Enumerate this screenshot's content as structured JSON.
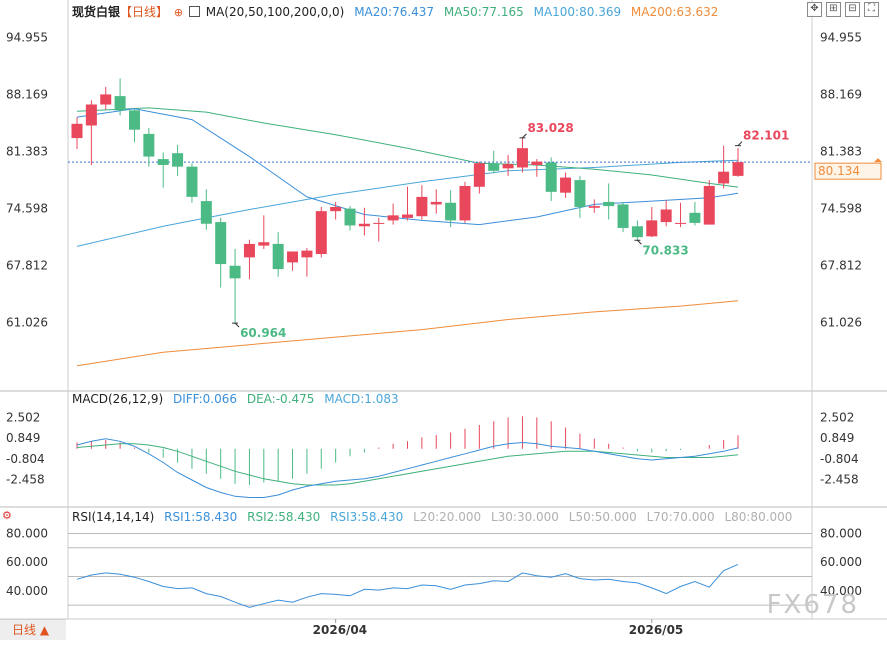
{
  "header": {
    "title": "现货白银",
    "period_tag": "【日线】",
    "ma_label": "MA(20,50,100,200,0,0)",
    "ma_values": [
      {
        "text": "MA20:76.437",
        "color": "#3b8fd9"
      },
      {
        "text": "MA50:77.165",
        "color": "#3fb07c"
      },
      {
        "text": "MA100:80.369",
        "color": "#4aa6d8"
      },
      {
        "text": "MA200:63.632",
        "color": "#f08c3a"
      }
    ]
  },
  "macd_legend": {
    "label": "MACD(26,12,9)",
    "values": [
      {
        "text": "DIFF:0.066",
        "color": "#3b8fd9"
      },
      {
        "text": "DEA:-0.475",
        "color": "#3fb07c"
      },
      {
        "text": "MACD:1.083",
        "color": "#4aa6d8"
      }
    ]
  },
  "rsi_legend": {
    "label": "RSI(14,14,14)",
    "values": [
      {
        "text": "RSI1:58.430",
        "color": "#3b8fd9"
      },
      {
        "text": "RSI2:58.430",
        "color": "#3fb07c"
      },
      {
        "text": "RSI3:58.430",
        "color": "#4aa6d8"
      },
      {
        "text": "L20:20.000",
        "color": "#b0b0b0"
      },
      {
        "text": "L30:30.000",
        "color": "#b0b0b0"
      },
      {
        "text": "L50:50.000",
        "color": "#b0b0b0"
      },
      {
        "text": "L70:70.000",
        "color": "#b0b0b0"
      },
      {
        "text": "L80:80.000",
        "color": "#b0b0b0"
      }
    ]
  },
  "period_tab": "日线 ▲",
  "watermark": "FX678",
  "colors": {
    "up": "#e8475c",
    "down": "#4cba85",
    "ma20": "#3b8fd9",
    "ma50": "#3fb07c",
    "ma100": "#4aa6d8",
    "ma200": "#f08c3a",
    "grid": "#dddddd",
    "axis_text": "#333333",
    "current_price_tag": "#f08c3a"
  },
  "chart_data": [
    {
      "type": "candlestick",
      "title": "现货白银【日线】",
      "y_ticks": [
        "94.955",
        "88.169",
        "81.383",
        "74.598",
        "67.812",
        "61.026"
      ],
      "ylim": [
        53.6,
        97.3
      ],
      "x_ticks": [
        "2026/04",
        "2026/05"
      ],
      "current_price": 80.134,
      "current_price_label": "80.134",
      "annotations": [
        {
          "label": "83.028",
          "value": 83.028,
          "index": 31,
          "color": "#e8475c"
        },
        {
          "label": "82.101",
          "value": 82.101,
          "index": 46,
          "color": "#e8475c"
        },
        {
          "label": "60.964",
          "value": 60.964,
          "index": 11,
          "color": "#4cba85"
        },
        {
          "label": "70.833",
          "value": 70.833,
          "index": 39,
          "color": "#4cba85"
        }
      ],
      "candles": [
        {
          "o": 83.0,
          "h": 85.5,
          "l": 81.7,
          "c": 84.7
        },
        {
          "o": 84.5,
          "h": 87.5,
          "l": 79.8,
          "c": 87.0
        },
        {
          "o": 87.0,
          "h": 89.1,
          "l": 86.4,
          "c": 88.2
        },
        {
          "o": 88.0,
          "h": 90.1,
          "l": 85.7,
          "c": 86.3
        },
        {
          "o": 86.3,
          "h": 86.4,
          "l": 82.5,
          "c": 84.0
        },
        {
          "o": 83.5,
          "h": 84.2,
          "l": 79.6,
          "c": 80.8
        },
        {
          "o": 80.5,
          "h": 81.3,
          "l": 77.1,
          "c": 79.8
        },
        {
          "o": 81.2,
          "h": 82.2,
          "l": 78.5,
          "c": 79.6
        },
        {
          "o": 79.6,
          "h": 80.0,
          "l": 75.3,
          "c": 76.0
        },
        {
          "o": 75.5,
          "h": 76.9,
          "l": 72.1,
          "c": 72.8
        },
        {
          "o": 73.0,
          "h": 73.5,
          "l": 65.2,
          "c": 68.0
        },
        {
          "o": 67.8,
          "h": 69.8,
          "l": 60.964,
          "c": 66.3
        },
        {
          "o": 68.8,
          "h": 70.9,
          "l": 66.2,
          "c": 70.4
        },
        {
          "o": 70.2,
          "h": 73.8,
          "l": 69.8,
          "c": 70.6
        },
        {
          "o": 70.4,
          "h": 71.8,
          "l": 66.5,
          "c": 67.4
        },
        {
          "o": 68.2,
          "h": 69.5,
          "l": 67.2,
          "c": 69.5
        },
        {
          "o": 68.8,
          "h": 69.9,
          "l": 66.5,
          "c": 69.6
        },
        {
          "o": 69.2,
          "h": 74.8,
          "l": 68.8,
          "c": 74.3
        },
        {
          "o": 74.3,
          "h": 75.4,
          "l": 73.3,
          "c": 74.8
        },
        {
          "o": 74.6,
          "h": 74.9,
          "l": 72.0,
          "c": 72.6
        },
        {
          "o": 72.5,
          "h": 74.7,
          "l": 71.4,
          "c": 72.8
        },
        {
          "o": 72.8,
          "h": 73.5,
          "l": 70.7,
          "c": 72.9
        },
        {
          "o": 73.2,
          "h": 75.2,
          "l": 72.7,
          "c": 73.8
        },
        {
          "o": 73.5,
          "h": 77.2,
          "l": 73.2,
          "c": 73.9
        },
        {
          "o": 73.7,
          "h": 77.4,
          "l": 73.3,
          "c": 76.0
        },
        {
          "o": 75.1,
          "h": 76.9,
          "l": 74.0,
          "c": 75.4
        },
        {
          "o": 75.3,
          "h": 76.8,
          "l": 72.4,
          "c": 73.2
        },
        {
          "o": 73.2,
          "h": 77.8,
          "l": 72.9,
          "c": 77.3
        },
        {
          "o": 77.2,
          "h": 80.2,
          "l": 76.4,
          "c": 80.0
        },
        {
          "o": 80.0,
          "h": 81.5,
          "l": 78.8,
          "c": 79.1
        },
        {
          "o": 79.4,
          "h": 81.0,
          "l": 78.5,
          "c": 79.9
        },
        {
          "o": 79.5,
          "h": 83.028,
          "l": 78.9,
          "c": 81.8
        },
        {
          "o": 79.8,
          "h": 80.5,
          "l": 78.4,
          "c": 80.2
        },
        {
          "o": 80.1,
          "h": 80.7,
          "l": 75.5,
          "c": 76.6
        },
        {
          "o": 76.5,
          "h": 78.9,
          "l": 75.9,
          "c": 78.3
        },
        {
          "o": 78.0,
          "h": 78.5,
          "l": 73.5,
          "c": 74.8
        },
        {
          "o": 74.7,
          "h": 75.7,
          "l": 74.1,
          "c": 74.9
        },
        {
          "o": 75.4,
          "h": 77.6,
          "l": 73.3,
          "c": 74.9
        },
        {
          "o": 75.1,
          "h": 75.4,
          "l": 71.8,
          "c": 72.3
        },
        {
          "o": 72.5,
          "h": 73.2,
          "l": 70.833,
          "c": 71.2
        },
        {
          "o": 71.3,
          "h": 74.8,
          "l": 71.2,
          "c": 73.2
        },
        {
          "o": 73.0,
          "h": 75.6,
          "l": 72.5,
          "c": 74.5
        },
        {
          "o": 72.8,
          "h": 75.3,
          "l": 72.4,
          "c": 72.9
        },
        {
          "o": 74.1,
          "h": 75.4,
          "l": 72.6,
          "c": 72.9
        },
        {
          "o": 72.7,
          "h": 78.0,
          "l": 72.7,
          "c": 77.3
        },
        {
          "o": 77.6,
          "h": 82.101,
          "l": 77.0,
          "c": 79.0
        },
        {
          "o": 78.5,
          "h": 81.8,
          "l": 78.4,
          "c": 80.134
        }
      ],
      "ma20": [
        [
          0,
          85.5
        ],
        [
          4,
          86.5
        ],
        [
          8,
          85.2
        ],
        [
          12,
          80.8
        ],
        [
          16,
          76.0
        ],
        [
          20,
          73.9
        ],
        [
          24,
          73.2
        ],
        [
          28,
          72.7
        ],
        [
          32,
          73.6
        ],
        [
          36,
          75.1
        ],
        [
          40,
          75.5
        ],
        [
          44,
          75.9
        ],
        [
          46,
          76.437
        ]
      ],
      "ma50": [
        [
          0,
          86.2
        ],
        [
          5,
          86.6
        ],
        [
          9,
          86.1
        ],
        [
          13,
          84.8
        ],
        [
          18,
          83.4
        ],
        [
          23,
          81.8
        ],
        [
          28,
          80.0
        ],
        [
          32,
          79.8
        ],
        [
          36,
          79.3
        ],
        [
          40,
          78.6
        ],
        [
          44,
          77.6
        ],
        [
          46,
          77.165
        ]
      ],
      "ma100": [
        [
          0,
          70.1
        ],
        [
          6,
          72.5
        ],
        [
          12,
          74.5
        ],
        [
          18,
          76.3
        ],
        [
          24,
          77.8
        ],
        [
          30,
          79.1
        ],
        [
          36,
          79.5
        ],
        [
          42,
          80.1
        ],
        [
          46,
          80.369
        ]
      ],
      "ma200": [
        [
          0,
          55.9
        ],
        [
          6,
          57.5
        ],
        [
          12,
          58.4
        ],
        [
          18,
          59.3
        ],
        [
          24,
          60.2
        ],
        [
          30,
          61.4
        ],
        [
          36,
          62.3
        ],
        [
          42,
          63.0
        ],
        [
          46,
          63.632
        ]
      ]
    },
    {
      "type": "bar+line",
      "title": "MACD(26,12,9)",
      "y_ticks": [
        "2.502",
        "0.849",
        "-0.804",
        "-2.458"
      ],
      "ylim": [
        -4.1,
        3.5
      ],
      "macd": [
        0.5,
        0.6,
        0.7,
        0.5,
        0.1,
        -0.3,
        -0.7,
        -1.1,
        -1.6,
        -2.0,
        -2.4,
        -2.8,
        -2.9,
        -2.7,
        -2.6,
        -2.4,
        -2.0,
        -1.6,
        -1.1,
        -0.6,
        -0.3,
        0.1,
        0.4,
        0.6,
        0.9,
        1.1,
        1.3,
        1.6,
        1.9,
        2.2,
        2.5,
        2.6,
        2.5,
        2.2,
        1.7,
        1.2,
        0.8,
        0.4,
        0.1,
        -0.2,
        -0.3,
        -0.2,
        -0.1,
        0.0,
        0.3,
        0.7,
        1.083
      ],
      "diff": [
        0.3,
        0.6,
        0.8,
        0.6,
        0.2,
        -0.4,
        -1.1,
        -1.9,
        -2.5,
        -3.1,
        -3.5,
        -3.8,
        -3.9,
        -3.9,
        -3.7,
        -3.3,
        -3.0,
        -2.8,
        -2.6,
        -2.5,
        -2.4,
        -2.2,
        -1.9,
        -1.6,
        -1.3,
        -1.0,
        -0.7,
        -0.4,
        -0.1,
        0.2,
        0.4,
        0.5,
        0.4,
        0.2,
        0.1,
        0.0,
        -0.2,
        -0.4,
        -0.6,
        -0.8,
        -0.9,
        -0.8,
        -0.7,
        -0.6,
        -0.4,
        -0.2,
        0.066
      ],
      "dea": [
        0.1,
        0.2,
        0.3,
        0.4,
        0.4,
        0.3,
        0.1,
        -0.2,
        -0.6,
        -1.0,
        -1.4,
        -1.8,
        -2.1,
        -2.4,
        -2.6,
        -2.8,
        -2.9,
        -2.9,
        -2.9,
        -2.8,
        -2.6,
        -2.4,
        -2.2,
        -2.0,
        -1.8,
        -1.6,
        -1.4,
        -1.2,
        -1.0,
        -0.8,
        -0.6,
        -0.5,
        -0.4,
        -0.3,
        -0.2,
        -0.2,
        -0.2,
        -0.3,
        -0.4,
        -0.5,
        -0.6,
        -0.7,
        -0.7,
        -0.7,
        -0.7,
        -0.6,
        -0.475
      ]
    },
    {
      "type": "line",
      "title": "RSI(14,14,14)",
      "y_ticks": [
        "80.000",
        "60.000",
        "40.000"
      ],
      "ylim": [
        21,
        88
      ],
      "rsi": [
        48.0,
        51.0,
        52.5,
        51.5,
        49.5,
        46.5,
        43.0,
        41.5,
        42.0,
        38.0,
        36.0,
        32.0,
        28.5,
        31.0,
        33.5,
        32.0,
        35.5,
        38.0,
        37.5,
        36.5,
        41.0,
        40.5,
        42.0,
        41.5,
        44.0,
        43.5,
        41.0,
        44.0,
        45.0,
        47.0,
        46.5,
        52.5,
        50.5,
        49.5,
        52.0,
        48.5,
        47.5,
        48.0,
        46.5,
        45.5,
        42.0,
        38.0,
        43.0,
        46.5,
        42.5,
        54.0,
        58.43
      ]
    }
  ]
}
